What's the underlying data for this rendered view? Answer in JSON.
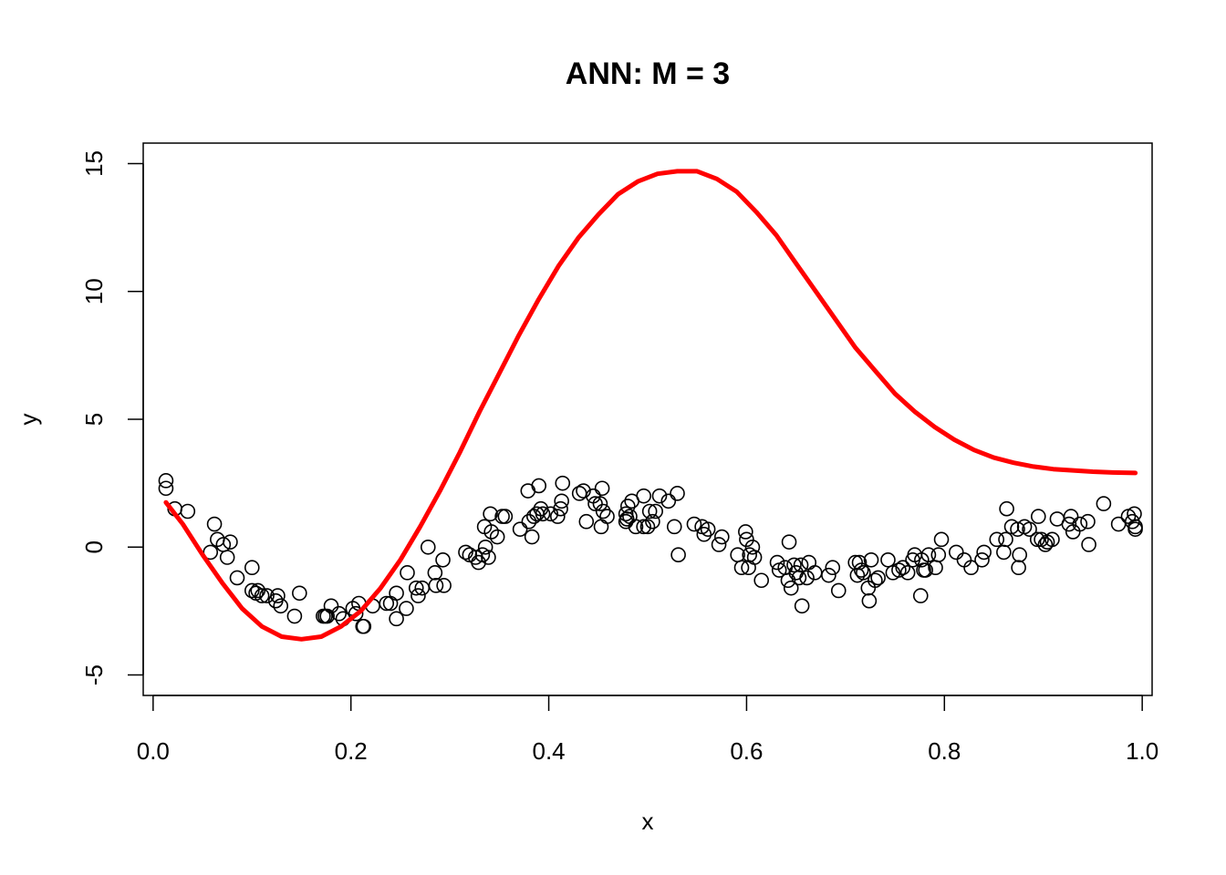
{
  "chart_data": {
    "type": "scatter",
    "title": "ANN: M = 3",
    "xlabel": "x",
    "ylabel": "y",
    "xlim": [
      -0.01,
      1.01
    ],
    "ylim": [
      -5.8,
      15.8
    ],
    "xticks": [
      {
        "value": 0.0,
        "label": "0.0"
      },
      {
        "value": 0.2,
        "label": "0.2"
      },
      {
        "value": 0.4,
        "label": "0.4"
      },
      {
        "value": 0.6,
        "label": "0.6"
      },
      {
        "value": 0.8,
        "label": "0.8"
      },
      {
        "value": 1.0,
        "label": "1.0"
      }
    ],
    "yticks": [
      {
        "value": -5,
        "label": "-5"
      },
      {
        "value": 0,
        "label": "0"
      },
      {
        "value": 5,
        "label": "5"
      },
      {
        "value": 10,
        "label": "10"
      },
      {
        "value": 15,
        "label": "15"
      }
    ],
    "grid": false,
    "legend": "none",
    "colors": {
      "points": "#000000",
      "fit_line": "#ff0000"
    },
    "points": [
      [
        0.013,
        2.6
      ],
      [
        0.013,
        2.3
      ],
      [
        0.022,
        1.5
      ],
      [
        0.035,
        1.4
      ],
      [
        0.058,
        -0.2
      ],
      [
        0.062,
        0.9
      ],
      [
        0.065,
        0.3
      ],
      [
        0.071,
        0.1
      ],
      [
        0.075,
        -0.4
      ],
      [
        0.078,
        0.2
      ],
      [
        0.085,
        -1.2
      ],
      [
        0.1,
        -0.8
      ],
      [
        0.1,
        -1.7
      ],
      [
        0.104,
        -1.8
      ],
      [
        0.106,
        -1.7
      ],
      [
        0.11,
        -1.9
      ],
      [
        0.115,
        -1.9
      ],
      [
        0.124,
        -2.1
      ],
      [
        0.126,
        -1.9
      ],
      [
        0.129,
        -2.3
      ],
      [
        0.143,
        -2.7
      ],
      [
        0.148,
        -1.8
      ],
      [
        0.172,
        -2.7
      ],
      [
        0.174,
        -2.7
      ],
      [
        0.176,
        -2.7
      ],
      [
        0.18,
        -2.3
      ],
      [
        0.188,
        -2.6
      ],
      [
        0.192,
        -2.8
      ],
      [
        0.202,
        -2.4
      ],
      [
        0.205,
        -2.6
      ],
      [
        0.208,
        -2.2
      ],
      [
        0.212,
        -3.1
      ],
      [
        0.213,
        -3.1
      ],
      [
        0.222,
        -2.3
      ],
      [
        0.236,
        -2.2
      ],
      [
        0.24,
        -2.2
      ],
      [
        0.246,
        -1.8
      ],
      [
        0.246,
        -2.8
      ],
      [
        0.256,
        -2.4
      ],
      [
        0.257,
        -1.0
      ],
      [
        0.266,
        -1.6
      ],
      [
        0.268,
        -1.9
      ],
      [
        0.272,
        -1.6
      ],
      [
        0.278,
        0.0
      ],
      [
        0.285,
        -1.0
      ],
      [
        0.286,
        -1.5
      ],
      [
        0.293,
        -0.5
      ],
      [
        0.294,
        -1.5
      ],
      [
        0.316,
        -0.2
      ],
      [
        0.32,
        -0.3
      ],
      [
        0.326,
        -0.4
      ],
      [
        0.329,
        -0.6
      ],
      [
        0.333,
        -0.3
      ],
      [
        0.335,
        0.8
      ],
      [
        0.336,
        0.0
      ],
      [
        0.339,
        -0.4
      ],
      [
        0.341,
        1.3
      ],
      [
        0.342,
        0.6
      ],
      [
        0.348,
        0.4
      ],
      [
        0.353,
        1.2
      ],
      [
        0.356,
        1.2
      ],
      [
        0.371,
        0.7
      ],
      [
        0.379,
        2.2
      ],
      [
        0.38,
        1.0
      ],
      [
        0.383,
        0.4
      ],
      [
        0.385,
        1.2
      ],
      [
        0.388,
        1.3
      ],
      [
        0.39,
        2.4
      ],
      [
        0.392,
        1.5
      ],
      [
        0.394,
        1.3
      ],
      [
        0.402,
        1.3
      ],
      [
        0.409,
        1.2
      ],
      [
        0.412,
        1.5
      ],
      [
        0.413,
        1.8
      ],
      [
        0.414,
        2.5
      ],
      [
        0.431,
        2.1
      ],
      [
        0.435,
        2.2
      ],
      [
        0.438,
        1.0
      ],
      [
        0.445,
        2.0
      ],
      [
        0.447,
        1.7
      ],
      [
        0.452,
        1.7
      ],
      [
        0.453,
        0.8
      ],
      [
        0.454,
        2.3
      ],
      [
        0.455,
        1.4
      ],
      [
        0.459,
        1.2
      ],
      [
        0.478,
        1.3
      ],
      [
        0.478,
        1.0
      ],
      [
        0.479,
        1.1
      ],
      [
        0.48,
        1.6
      ],
      [
        0.482,
        1.2
      ],
      [
        0.484,
        1.8
      ],
      [
        0.488,
        0.8
      ],
      [
        0.496,
        0.8
      ],
      [
        0.496,
        2.0
      ],
      [
        0.5,
        0.8
      ],
      [
        0.502,
        1.4
      ],
      [
        0.505,
        1.0
      ],
      [
        0.508,
        1.4
      ],
      [
        0.512,
        2.0
      ],
      [
        0.521,
        1.8
      ],
      [
        0.527,
        0.8
      ],
      [
        0.53,
        2.1
      ],
      [
        0.531,
        -0.3
      ],
      [
        0.547,
        0.9
      ],
      [
        0.555,
        0.8
      ],
      [
        0.557,
        0.5
      ],
      [
        0.561,
        0.7
      ],
      [
        0.572,
        0.1
      ],
      [
        0.575,
        0.4
      ],
      [
        0.591,
        -0.3
      ],
      [
        0.595,
        -0.8
      ],
      [
        0.599,
        0.6
      ],
      [
        0.6,
        0.3
      ],
      [
        0.602,
        -0.8
      ],
      [
        0.603,
        -0.3
      ],
      [
        0.606,
        0.0
      ],
      [
        0.608,
        -0.4
      ],
      [
        0.615,
        -1.3
      ],
      [
        0.631,
        -0.6
      ],
      [
        0.633,
        -0.9
      ],
      [
        0.639,
        -0.8
      ],
      [
        0.642,
        -1.3
      ],
      [
        0.643,
        0.2
      ],
      [
        0.645,
        -1.6
      ],
      [
        0.648,
        -0.7
      ],
      [
        0.65,
        -1.0
      ],
      [
        0.653,
        -1.2
      ],
      [
        0.655,
        -0.7
      ],
      [
        0.656,
        -2.3
      ],
      [
        0.661,
        -1.2
      ],
      [
        0.663,
        -0.6
      ],
      [
        0.669,
        -1.0
      ],
      [
        0.683,
        -1.1
      ],
      [
        0.687,
        -0.8
      ],
      [
        0.693,
        -1.7
      ],
      [
        0.71,
        -0.6
      ],
      [
        0.712,
        -1.1
      ],
      [
        0.714,
        -0.6
      ],
      [
        0.716,
        -0.9
      ],
      [
        0.718,
        -1.0
      ],
      [
        0.723,
        -1.6
      ],
      [
        0.724,
        -2.1
      ],
      [
        0.726,
        -0.5
      ],
      [
        0.73,
        -1.3
      ],
      [
        0.733,
        -1.2
      ],
      [
        0.743,
        -0.5
      ],
      [
        0.748,
        -1.0
      ],
      [
        0.754,
        -0.9
      ],
      [
        0.758,
        -0.8
      ],
      [
        0.763,
        -1.0
      ],
      [
        0.768,
        -0.5
      ],
      [
        0.77,
        -0.3
      ],
      [
        0.776,
        -1.9
      ],
      [
        0.777,
        -0.5
      ],
      [
        0.779,
        -0.9
      ],
      [
        0.781,
        -0.9
      ],
      [
        0.784,
        -0.3
      ],
      [
        0.791,
        -0.8
      ],
      [
        0.794,
        -0.3
      ],
      [
        0.797,
        0.3
      ],
      [
        0.812,
        -0.2
      ],
      [
        0.82,
        -0.5
      ],
      [
        0.827,
        -0.8
      ],
      [
        0.838,
        -0.5
      ],
      [
        0.84,
        -0.2
      ],
      [
        0.853,
        0.3
      ],
      [
        0.86,
        -0.2
      ],
      [
        0.862,
        0.3
      ],
      [
        0.863,
        1.5
      ],
      [
        0.868,
        0.8
      ],
      [
        0.874,
        0.7
      ],
      [
        0.875,
        -0.8
      ],
      [
        0.876,
        -0.3
      ],
      [
        0.881,
        0.8
      ],
      [
        0.886,
        0.7
      ],
      [
        0.894,
        0.3
      ],
      [
        0.895,
        1.2
      ],
      [
        0.898,
        0.3
      ],
      [
        0.902,
        0.1
      ],
      [
        0.904,
        0.2
      ],
      [
        0.909,
        0.3
      ],
      [
        0.914,
        1.1
      ],
      [
        0.926,
        0.9
      ],
      [
        0.928,
        1.2
      ],
      [
        0.93,
        0.6
      ],
      [
        0.937,
        0.9
      ],
      [
        0.945,
        1.0
      ],
      [
        0.946,
        0.1
      ],
      [
        0.961,
        1.7
      ],
      [
        0.976,
        0.9
      ],
      [
        0.986,
        1.2
      ],
      [
        0.99,
        1.0
      ],
      [
        0.992,
        1.3
      ],
      [
        0.993,
        0.8
      ],
      [
        0.993,
        0.7
      ]
    ],
    "fit_line": {
      "x": [
        0.013,
        0.03,
        0.05,
        0.07,
        0.09,
        0.11,
        0.13,
        0.15,
        0.17,
        0.19,
        0.21,
        0.23,
        0.25,
        0.27,
        0.29,
        0.31,
        0.33,
        0.35,
        0.37,
        0.39,
        0.41,
        0.43,
        0.45,
        0.47,
        0.49,
        0.51,
        0.53,
        0.55,
        0.57,
        0.59,
        0.61,
        0.63,
        0.65,
        0.67,
        0.69,
        0.71,
        0.73,
        0.75,
        0.77,
        0.79,
        0.81,
        0.83,
        0.85,
        0.87,
        0.89,
        0.91,
        0.93,
        0.95,
        0.97,
        0.993
      ],
      "y": [
        1.75,
        0.9,
        -0.3,
        -1.4,
        -2.4,
        -3.1,
        -3.5,
        -3.6,
        -3.5,
        -3.1,
        -2.5,
        -1.6,
        -0.5,
        0.8,
        2.2,
        3.7,
        5.3,
        6.8,
        8.3,
        9.7,
        11.0,
        12.1,
        13.0,
        13.8,
        14.3,
        14.6,
        14.7,
        14.7,
        14.4,
        13.9,
        13.1,
        12.2,
        11.1,
        10.0,
        8.9,
        7.8,
        6.9,
        6.0,
        5.3,
        4.7,
        4.2,
        3.8,
        3.5,
        3.3,
        3.15,
        3.05,
        3.0,
        2.95,
        2.92,
        2.9
      ]
    }
  }
}
